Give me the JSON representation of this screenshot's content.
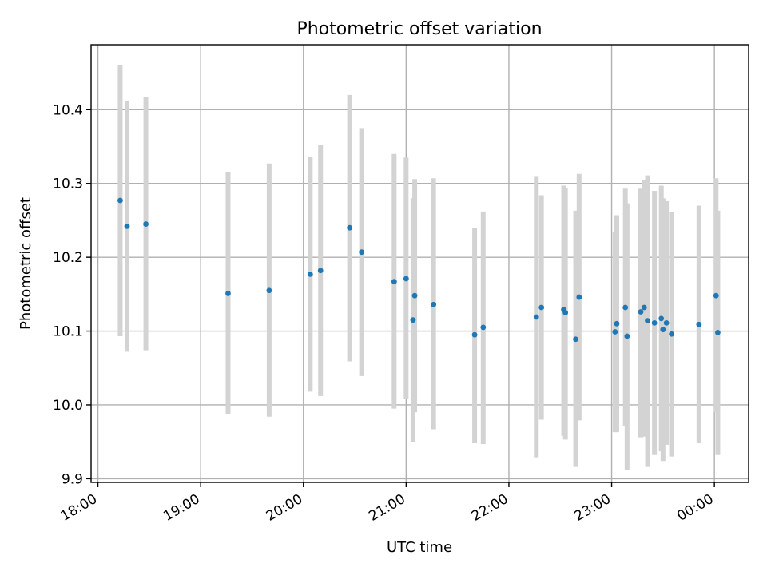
{
  "chart_data": {
    "type": "scatter",
    "title": "Photometric offset variation",
    "xlabel": "UTC time",
    "ylabel": "Photometric offset",
    "x_axis_type": "time",
    "x_ticks": [
      "18:00",
      "19:00",
      "20:00",
      "21:00",
      "22:00",
      "23:00",
      "00:00"
    ],
    "x_tick_rotation_deg": 30,
    "y_ticks": [
      "9.9",
      "10.0",
      "10.1",
      "10.2",
      "10.3",
      "10.4"
    ],
    "xlim": [
      "17:56",
      "00:20"
    ],
    "ylim": [
      9.895,
      10.488
    ],
    "grid": true,
    "legend": "none",
    "colors": {
      "point": "#1f77b4",
      "errorbar": "#d3d3d3",
      "grid": "#b0b0b0"
    },
    "series": [
      {
        "points": [
          {
            "x": "18:13",
            "y": 10.277,
            "ylo": 10.093,
            "yhi": 10.461
          },
          {
            "x": "18:17",
            "y": 10.242,
            "ylo": 10.072,
            "yhi": 10.412
          },
          {
            "x": "18:28",
            "y": 10.245,
            "ylo": 10.074,
            "yhi": 10.417
          },
          {
            "x": "19:16",
            "y": 10.151,
            "ylo": 9.987,
            "yhi": 10.315
          },
          {
            "x": "19:40",
            "y": 10.155,
            "ylo": 9.984,
            "yhi": 10.327
          },
          {
            "x": "20:04",
            "y": 10.177,
            "ylo": 10.018,
            "yhi": 10.336
          },
          {
            "x": "20:10",
            "y": 10.182,
            "ylo": 10.012,
            "yhi": 10.352
          },
          {
            "x": "20:27",
            "y": 10.24,
            "ylo": 10.059,
            "yhi": 10.42
          },
          {
            "x": "20:34",
            "y": 10.207,
            "ylo": 10.039,
            "yhi": 10.375
          },
          {
            "x": "20:53",
            "y": 10.167,
            "ylo": 9.995,
            "yhi": 10.34
          },
          {
            "x": "21:00",
            "y": 10.171,
            "ylo": 10.008,
            "yhi": 10.335
          },
          {
            "x": "21:04",
            "y": 10.115,
            "ylo": 9.95,
            "yhi": 10.28
          },
          {
            "x": "21:05",
            "y": 10.148,
            "ylo": 9.99,
            "yhi": 10.306
          },
          {
            "x": "21:16",
            "y": 10.136,
            "ylo": 9.967,
            "yhi": 10.307
          },
          {
            "x": "21:40",
            "y": 10.095,
            "ylo": 9.948,
            "yhi": 10.24
          },
          {
            "x": "21:45",
            "y": 10.105,
            "ylo": 9.947,
            "yhi": 10.262
          },
          {
            "x": "22:16",
            "y": 10.119,
            "ylo": 9.929,
            "yhi": 10.309
          },
          {
            "x": "22:19",
            "y": 10.132,
            "ylo": 9.98,
            "yhi": 10.284
          },
          {
            "x": "22:32",
            "y": 10.129,
            "ylo": 9.958,
            "yhi": 10.297
          },
          {
            "x": "22:33",
            "y": 10.125,
            "ylo": 9.953,
            "yhi": 10.294
          },
          {
            "x": "22:39",
            "y": 10.089,
            "ylo": 9.916,
            "yhi": 10.263
          },
          {
            "x": "22:41",
            "y": 10.146,
            "ylo": 9.979,
            "yhi": 10.313
          },
          {
            "x": "23:02",
            "y": 10.099,
            "ylo": 9.963,
            "yhi": 10.234
          },
          {
            "x": "23:03",
            "y": 10.11,
            "ylo": 9.963,
            "yhi": 10.257
          },
          {
            "x": "23:08",
            "y": 10.132,
            "ylo": 9.971,
            "yhi": 10.293
          },
          {
            "x": "23:09",
            "y": 10.093,
            "ylo": 9.912,
            "yhi": 10.273
          },
          {
            "x": "23:17",
            "y": 10.126,
            "ylo": 9.956,
            "yhi": 10.293
          },
          {
            "x": "23:19",
            "y": 10.132,
            "ylo": 9.957,
            "yhi": 10.304
          },
          {
            "x": "23:21",
            "y": 10.114,
            "ylo": 9.916,
            "yhi": 10.311
          },
          {
            "x": "23:25",
            "y": 10.111,
            "ylo": 9.932,
            "yhi": 10.29
          },
          {
            "x": "23:29",
            "y": 10.117,
            "ylo": 9.937,
            "yhi": 10.297
          },
          {
            "x": "23:30",
            "y": 10.102,
            "ylo": 9.924,
            "yhi": 10.28
          },
          {
            "x": "23:32",
            "y": 10.111,
            "ylo": 9.946,
            "yhi": 10.276
          },
          {
            "x": "23:35",
            "y": 10.096,
            "ylo": 9.93,
            "yhi": 10.261
          },
          {
            "x": "23:51",
            "y": 10.109,
            "ylo": 9.948,
            "yhi": 10.27
          },
          {
            "x": "00:01",
            "y": 10.148,
            "ylo": 9.99,
            "yhi": 10.307
          },
          {
            "x": "00:02",
            "y": 10.098,
            "ylo": 9.932,
            "yhi": 10.263
          }
        ]
      }
    ]
  }
}
